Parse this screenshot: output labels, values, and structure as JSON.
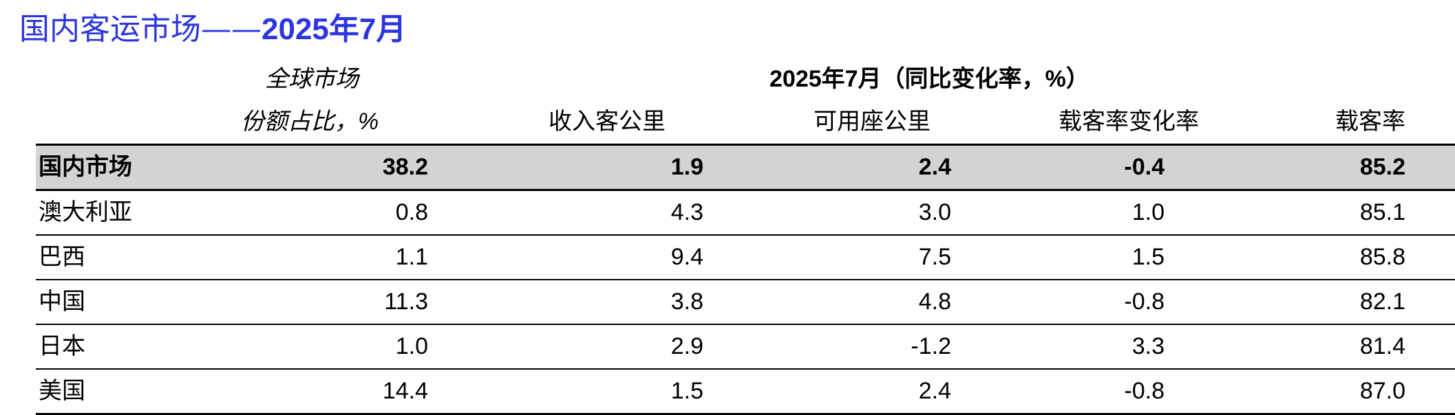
{
  "title": {
    "text_cn": "国内客运市场——",
    "text_date": "2025年7月"
  },
  "header": {
    "share_line1": "全球市场",
    "share_line2": "份额占比，%",
    "period_group": "2025年7月（同比变化率，%）",
    "columns": [
      "收入客公里",
      "可用座公里",
      "载客率变化率",
      "载客率"
    ]
  },
  "rows": [
    {
      "name": "国内市场",
      "share": "38.2",
      "rpk": "1.9",
      "ask": "2.4",
      "plf_change": "-0.4",
      "plf": "85.2",
      "highlight": true
    },
    {
      "name": "澳大利亚",
      "share": "0.8",
      "rpk": "4.3",
      "ask": "3.0",
      "plf_change": "1.0",
      "plf": "85.1"
    },
    {
      "name": "巴西",
      "share": "1.1",
      "rpk": "9.4",
      "ask": "7.5",
      "plf_change": "1.5",
      "plf": "85.8"
    },
    {
      "name": "中国",
      "share": "11.3",
      "rpk": "3.8",
      "ask": "4.8",
      "plf_change": "-0.8",
      "plf": "82.1"
    },
    {
      "name": "日本",
      "share": "1.0",
      "rpk": "2.9",
      "ask": "-1.2",
      "plf_change": "3.3",
      "plf": "81.4"
    },
    {
      "name": "美国",
      "share": "14.4",
      "rpk": "1.5",
      "ask": "2.4",
      "plf_change": "-0.8",
      "plf": "87.0"
    }
  ],
  "colors": {
    "title": "#2b35e0",
    "highlight_row": "#d3d3d3",
    "rule": "#000000"
  }
}
